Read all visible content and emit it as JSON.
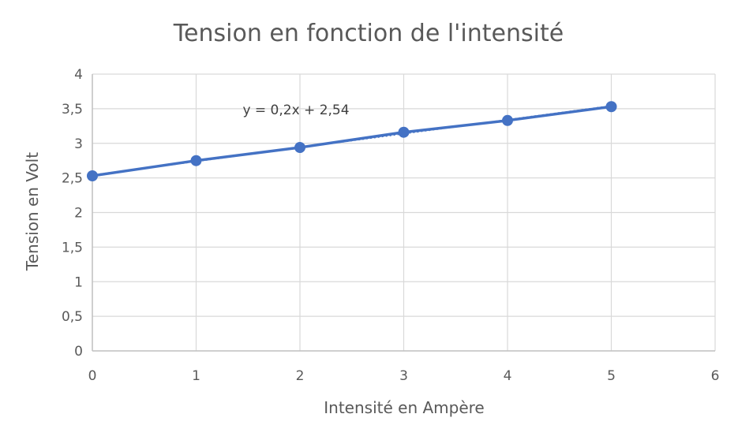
{
  "chart_data": {
    "type": "scatter",
    "title": "Tension en fonction de l'intensité",
    "xlabel": "Intensité en Ampère",
    "ylabel": "Tension en Volt",
    "xlim": [
      0,
      6
    ],
    "ylim": [
      0,
      4
    ],
    "x_ticks": [
      "0",
      "1",
      "2",
      "3",
      "4",
      "5",
      "6"
    ],
    "y_ticks": [
      "0",
      "0,5",
      "1",
      "1,5",
      "2",
      "2,5",
      "3",
      "3,5",
      "4"
    ],
    "grid": true,
    "series": [
      {
        "x": [
          0,
          1,
          2,
          3,
          4,
          5
        ],
        "values": [
          2.53,
          2.75,
          2.94,
          3.16,
          3.33,
          3.53
        ],
        "color": "#4472C4",
        "markers": true,
        "connected": true
      }
    ],
    "trendline": {
      "type": "linear",
      "slope": 0.2,
      "intercept": 2.54,
      "equation": "y = 0,2x + 2,54",
      "style": "dotted",
      "color": "#4472C4"
    }
  }
}
